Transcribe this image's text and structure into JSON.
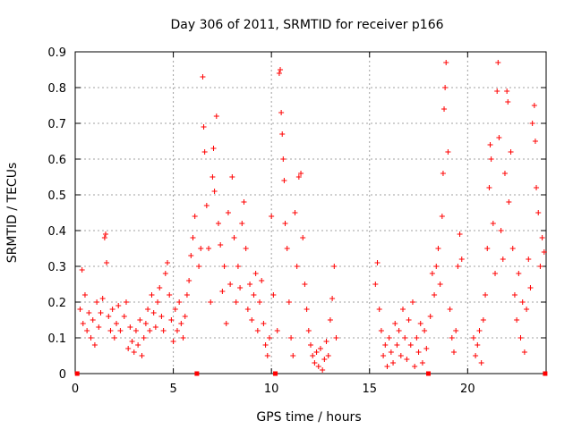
{
  "chart_data": {
    "type": "scatter",
    "title": "Day 306 of 2011, SRMTID for receiver p166",
    "xlabel": "GPS time / hours",
    "ylabel": "SRMTID / TECUs",
    "xlim": [
      0,
      24
    ],
    "ylim": [
      0,
      0.9
    ],
    "xticks": [
      0,
      5,
      10,
      15,
      20
    ],
    "xtick_labels": [
      "0",
      "5",
      "10",
      "15",
      "20"
    ],
    "yticks": [
      0,
      0.1,
      0.2,
      0.3,
      0.4,
      0.5,
      0.6,
      0.7,
      0.8,
      0.9
    ],
    "ytick_labels": [
      "0",
      "0.1",
      "0.2",
      "0.3",
      "0.4",
      "0.5",
      "0.6",
      "0.7",
      "0.8",
      "0.9"
    ],
    "grid": true,
    "marker": "+",
    "color": "#ff0000",
    "series": [
      {
        "name": "SRMTID",
        "points": [
          [
            0.1,
            0.0
          ],
          [
            0.25,
            0.18
          ],
          [
            0.35,
            0.29
          ],
          [
            0.4,
            0.14
          ],
          [
            0.5,
            0.22
          ],
          [
            0.6,
            0.12
          ],
          [
            0.7,
            0.17
          ],
          [
            0.8,
            0.1
          ],
          [
            0.9,
            0.15
          ],
          [
            1.0,
            0.08
          ],
          [
            1.1,
            0.2
          ],
          [
            1.2,
            0.13
          ],
          [
            1.3,
            0.17
          ],
          [
            1.4,
            0.21
          ],
          [
            1.5,
            0.38
          ],
          [
            1.55,
            0.39
          ],
          [
            1.6,
            0.31
          ],
          [
            1.7,
            0.16
          ],
          [
            1.8,
            0.12
          ],
          [
            1.9,
            0.18
          ],
          [
            2.0,
            0.1
          ],
          [
            2.1,
            0.14
          ],
          [
            2.2,
            0.19
          ],
          [
            2.3,
            0.12
          ],
          [
            2.5,
            0.16
          ],
          [
            2.6,
            0.2
          ],
          [
            2.7,
            0.07
          ],
          [
            2.8,
            0.13
          ],
          [
            2.9,
            0.09
          ],
          [
            3.0,
            0.06
          ],
          [
            3.1,
            0.12
          ],
          [
            3.2,
            0.08
          ],
          [
            3.3,
            0.15
          ],
          [
            3.4,
            0.05
          ],
          [
            3.5,
            0.1
          ],
          [
            3.6,
            0.14
          ],
          [
            3.7,
            0.18
          ],
          [
            3.8,
            0.12
          ],
          [
            3.9,
            0.22
          ],
          [
            4.0,
            0.17
          ],
          [
            4.1,
            0.13
          ],
          [
            4.2,
            0.2
          ],
          [
            4.3,
            0.24
          ],
          [
            4.4,
            0.16
          ],
          [
            4.5,
            0.12
          ],
          [
            4.6,
            0.28
          ],
          [
            4.7,
            0.31
          ],
          [
            4.8,
            0.22
          ],
          [
            4.9,
            0.15
          ],
          [
            5.0,
            0.09
          ],
          [
            5.1,
            0.18
          ],
          [
            5.2,
            0.12
          ],
          [
            5.3,
            0.2
          ],
          [
            5.4,
            0.14
          ],
          [
            5.5,
            0.1
          ],
          [
            5.6,
            0.16
          ],
          [
            5.7,
            0.22
          ],
          [
            5.8,
            0.26
          ],
          [
            5.9,
            0.33
          ],
          [
            6.0,
            0.38
          ],
          [
            6.1,
            0.44
          ],
          [
            6.2,
            0.0
          ],
          [
            6.3,
            0.3
          ],
          [
            6.4,
            0.35
          ],
          [
            6.5,
            0.83
          ],
          [
            6.55,
            0.69
          ],
          [
            6.6,
            0.62
          ],
          [
            6.7,
            0.47
          ],
          [
            6.8,
            0.35
          ],
          [
            6.9,
            0.2
          ],
          [
            7.0,
            0.55
          ],
          [
            7.05,
            0.63
          ],
          [
            7.1,
            0.51
          ],
          [
            7.2,
            0.72
          ],
          [
            7.3,
            0.42
          ],
          [
            7.4,
            0.36
          ],
          [
            7.5,
            0.23
          ],
          [
            7.6,
            0.3
          ],
          [
            7.7,
            0.14
          ],
          [
            7.8,
            0.45
          ],
          [
            7.9,
            0.25
          ],
          [
            8.0,
            0.55
          ],
          [
            8.1,
            0.38
          ],
          [
            8.2,
            0.2
          ],
          [
            8.3,
            0.3
          ],
          [
            8.4,
            0.24
          ],
          [
            8.5,
            0.42
          ],
          [
            8.6,
            0.48
          ],
          [
            8.7,
            0.35
          ],
          [
            8.8,
            0.18
          ],
          [
            8.9,
            0.25
          ],
          [
            9.0,
            0.15
          ],
          [
            9.1,
            0.22
          ],
          [
            9.2,
            0.28
          ],
          [
            9.3,
            0.12
          ],
          [
            9.4,
            0.2
          ],
          [
            9.5,
            0.26
          ],
          [
            9.6,
            0.14
          ],
          [
            9.7,
            0.08
          ],
          [
            9.8,
            0.05
          ],
          [
            9.9,
            0.1
          ],
          [
            10.0,
            0.44
          ],
          [
            10.1,
            0.22
          ],
          [
            10.2,
            0.0
          ],
          [
            10.3,
            0.12
          ],
          [
            10.4,
            0.84
          ],
          [
            10.45,
            0.85
          ],
          [
            10.5,
            0.73
          ],
          [
            10.55,
            0.67
          ],
          [
            10.6,
            0.6
          ],
          [
            10.65,
            0.54
          ],
          [
            10.7,
            0.42
          ],
          [
            10.8,
            0.35
          ],
          [
            10.9,
            0.2
          ],
          [
            11.0,
            0.1
          ],
          [
            11.1,
            0.05
          ],
          [
            11.2,
            0.45
          ],
          [
            11.3,
            0.3
          ],
          [
            11.4,
            0.55
          ],
          [
            11.5,
            0.56
          ],
          [
            11.6,
            0.38
          ],
          [
            11.7,
            0.25
          ],
          [
            11.8,
            0.18
          ],
          [
            11.9,
            0.12
          ],
          [
            12.0,
            0.08
          ],
          [
            12.1,
            0.05
          ],
          [
            12.2,
            0.03
          ],
          [
            12.3,
            0.06
          ],
          [
            12.4,
            0.02
          ],
          [
            12.5,
            0.07
          ],
          [
            12.6,
            0.01
          ],
          [
            12.7,
            0.04
          ],
          [
            12.8,
            0.09
          ],
          [
            12.9,
            0.05
          ],
          [
            13.0,
            0.15
          ],
          [
            13.1,
            0.21
          ],
          [
            13.2,
            0.3
          ],
          [
            13.3,
            0.1
          ],
          [
            15.3,
            0.25
          ],
          [
            15.4,
            0.31
          ],
          [
            15.5,
            0.18
          ],
          [
            15.6,
            0.12
          ],
          [
            15.7,
            0.05
          ],
          [
            15.8,
            0.08
          ],
          [
            15.9,
            0.02
          ],
          [
            16.0,
            0.1
          ],
          [
            16.1,
            0.06
          ],
          [
            16.2,
            0.03
          ],
          [
            16.3,
            0.14
          ],
          [
            16.4,
            0.08
          ],
          [
            16.5,
            0.12
          ],
          [
            16.6,
            0.05
          ],
          [
            16.7,
            0.18
          ],
          [
            16.8,
            0.1
          ],
          [
            16.9,
            0.04
          ],
          [
            17.0,
            0.15
          ],
          [
            17.1,
            0.08
          ],
          [
            17.2,
            0.2
          ],
          [
            17.3,
            0.02
          ],
          [
            17.4,
            0.1
          ],
          [
            17.5,
            0.06
          ],
          [
            17.6,
            0.14
          ],
          [
            17.7,
            0.03
          ],
          [
            17.8,
            0.12
          ],
          [
            17.9,
            0.07
          ],
          [
            18.0,
            0.0
          ],
          [
            18.1,
            0.16
          ],
          [
            18.2,
            0.28
          ],
          [
            18.3,
            0.22
          ],
          [
            18.4,
            0.3
          ],
          [
            18.5,
            0.35
          ],
          [
            18.6,
            0.25
          ],
          [
            18.7,
            0.44
          ],
          [
            18.75,
            0.56
          ],
          [
            18.8,
            0.74
          ],
          [
            18.85,
            0.8
          ],
          [
            18.9,
            0.87
          ],
          [
            19.0,
            0.62
          ],
          [
            19.1,
            0.18
          ],
          [
            19.2,
            0.1
          ],
          [
            19.3,
            0.06
          ],
          [
            19.4,
            0.12
          ],
          [
            19.5,
            0.3
          ],
          [
            19.6,
            0.39
          ],
          [
            19.7,
            0.32
          ],
          [
            20.3,
            0.1
          ],
          [
            20.4,
            0.05
          ],
          [
            20.5,
            0.08
          ],
          [
            20.6,
            0.12
          ],
          [
            20.7,
            0.03
          ],
          [
            20.8,
            0.15
          ],
          [
            20.9,
            0.22
          ],
          [
            21.0,
            0.35
          ],
          [
            21.1,
            0.52
          ],
          [
            21.15,
            0.64
          ],
          [
            21.2,
            0.6
          ],
          [
            21.3,
            0.42
          ],
          [
            21.4,
            0.28
          ],
          [
            21.5,
            0.79
          ],
          [
            21.55,
            0.87
          ],
          [
            21.6,
            0.66
          ],
          [
            21.7,
            0.4
          ],
          [
            21.8,
            0.32
          ],
          [
            21.9,
            0.56
          ],
          [
            22.0,
            0.79
          ],
          [
            22.05,
            0.76
          ],
          [
            22.1,
            0.48
          ],
          [
            22.2,
            0.62
          ],
          [
            22.3,
            0.35
          ],
          [
            22.4,
            0.22
          ],
          [
            22.5,
            0.15
          ],
          [
            22.6,
            0.28
          ],
          [
            22.7,
            0.1
          ],
          [
            22.8,
            0.2
          ],
          [
            22.9,
            0.06
          ],
          [
            23.0,
            0.18
          ],
          [
            23.1,
            0.32
          ],
          [
            23.2,
            0.24
          ],
          [
            23.3,
            0.7
          ],
          [
            23.4,
            0.75
          ],
          [
            23.45,
            0.65
          ],
          [
            23.5,
            0.52
          ],
          [
            23.6,
            0.45
          ],
          [
            23.7,
            0.3
          ],
          [
            23.8,
            0.38
          ],
          [
            23.9,
            0.34
          ],
          [
            23.95,
            0.0
          ]
        ]
      }
    ]
  }
}
